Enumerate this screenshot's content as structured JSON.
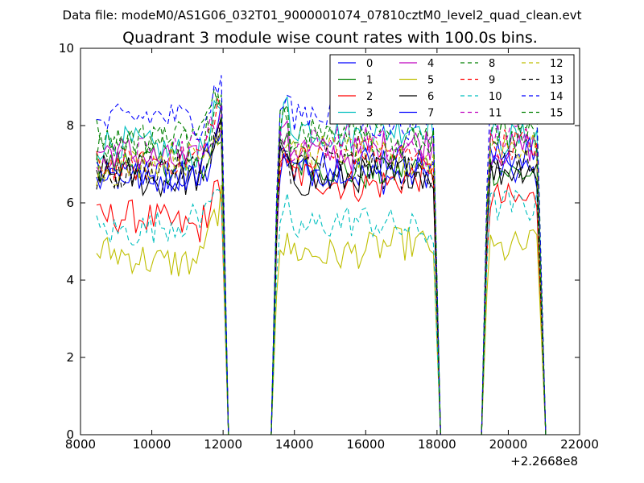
{
  "chart_data": {
    "type": "line",
    "suptitle": "Data file: modeM0/AS1G06_032T01_9000001074_07810cztM0_level2_quad_clean.evt",
    "title": "Quadrant 3 module wise count rates with 100.0s bins.",
    "xlabel": "",
    "ylabel": "",
    "xlim": [
      8000,
      22000
    ],
    "ylim": [
      0,
      10
    ],
    "x_offset_label": "+2.2668e8",
    "x_ticks": [
      8000,
      10000,
      12000,
      14000,
      16000,
      18000,
      20000,
      22000
    ],
    "y_ticks": [
      0,
      2,
      4,
      6,
      8,
      10
    ],
    "x_tick_labels": [
      "8000",
      "10000",
      "12000",
      "14000",
      "16000",
      "18000",
      "20000",
      "22000"
    ],
    "y_tick_labels": [
      "0",
      "2",
      "4",
      "6",
      "8",
      "10"
    ],
    "legend": {
      "placement": "top-right",
      "columns": 4
    },
    "segments": [
      {
        "start": 8450,
        "end": 11950
      },
      {
        "start": 13600,
        "end": 17900
      },
      {
        "start": 19500,
        "end": 20850
      }
    ],
    "gaps": [
      [
        12200,
        13400
      ],
      [
        18000,
        19300
      ]
    ],
    "series": [
      {
        "name": "0",
        "color": "#0000ff",
        "dash": "solid",
        "levels": [
          6.6,
          6.8,
          6.9
        ]
      },
      {
        "name": "1",
        "color": "#008000",
        "dash": "solid",
        "levels": [
          6.9,
          6.9,
          6.9
        ]
      },
      {
        "name": "2",
        "color": "#ff0000",
        "dash": "solid",
        "levels": [
          5.5,
          6.6,
          6.2
        ]
      },
      {
        "name": "3",
        "color": "#00bfbf",
        "dash": "solid",
        "levels": [
          7.4,
          7.9,
          7.8
        ]
      },
      {
        "name": "4",
        "color": "#bf00bf",
        "dash": "solid",
        "levels": [
          7.2,
          7.4,
          7.5
        ]
      },
      {
        "name": "5",
        "color": "#bfbf00",
        "dash": "solid",
        "levels": [
          4.6,
          4.8,
          4.9
        ]
      },
      {
        "name": "6",
        "color": "#000000",
        "dash": "solid",
        "levels": [
          6.7,
          6.7,
          6.9
        ]
      },
      {
        "name": "7",
        "color": "#0000ff",
        "dash": "solid",
        "levels": [
          6.8,
          7.0,
          7.2
        ]
      },
      {
        "name": "8",
        "color": "#008000",
        "dash": "dashed",
        "levels": [
          7.7,
          7.9,
          7.9
        ]
      },
      {
        "name": "9",
        "color": "#ff0000",
        "dash": "dashed",
        "levels": [
          7.1,
          7.2,
          7.4
        ]
      },
      {
        "name": "10",
        "color": "#00bfbf",
        "dash": "dashed",
        "levels": [
          5.4,
          5.4,
          5.8
        ]
      },
      {
        "name": "11",
        "color": "#bf00bf",
        "dash": "dashed",
        "levels": [
          7.3,
          7.5,
          7.6
        ]
      },
      {
        "name": "12",
        "color": "#bfbf00",
        "dash": "dashed",
        "levels": [
          7.0,
          7.2,
          7.4
        ]
      },
      {
        "name": "13",
        "color": "#000000",
        "dash": "dashed",
        "levels": [
          6.8,
          6.9,
          7.0
        ]
      },
      {
        "name": "14",
        "color": "#0000ff",
        "dash": "dashed",
        "levels": [
          8.1,
          8.2,
          8.5
        ]
      },
      {
        "name": "15",
        "color": "#008000",
        "dash": "dashed",
        "levels": [
          7.5,
          7.6,
          7.8
        ]
      }
    ]
  }
}
